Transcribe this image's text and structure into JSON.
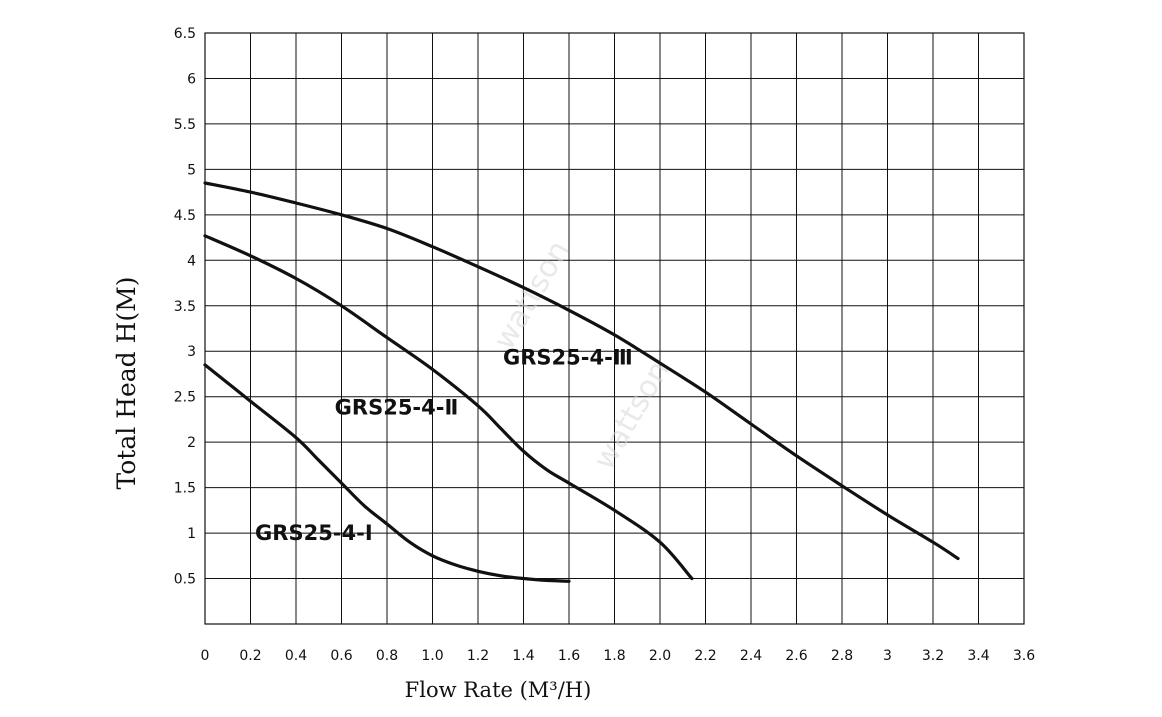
{
  "chart_data": {
    "type": "line",
    "title": "",
    "xlabel": "Flow Rate (M³/H)",
    "ylabel": "Total Head H(M)",
    "xlim": [
      0,
      3.6
    ],
    "ylim": [
      0,
      6.5
    ],
    "x_ticks": [
      "0",
      "0.2",
      "0.4",
      "0.6",
      "0.8",
      "1.0",
      "1.2",
      "1.4",
      "1.6",
      "1.8",
      "2.0",
      "2.2",
      "2.4",
      "2.6",
      "2.8",
      "3",
      "3.2",
      "3.4",
      "3.6"
    ],
    "y_ticks": [
      "0.5",
      "1",
      "1.5",
      "2",
      "2.5",
      "3",
      "3.5",
      "4",
      "4.5",
      "5",
      "5.5",
      "6",
      "6.5"
    ],
    "grid": true,
    "series": [
      {
        "name": "GRS25-4-Ⅰ",
        "x": [
          0,
          0.2,
          0.4,
          0.5,
          0.6,
          0.7,
          0.8,
          0.9,
          1.0,
          1.1,
          1.2,
          1.3,
          1.4,
          1.5,
          1.6
        ],
        "y": [
          2.85,
          2.45,
          2.05,
          1.8,
          1.55,
          1.3,
          1.1,
          0.9,
          0.75,
          0.65,
          0.58,
          0.53,
          0.5,
          0.48,
          0.47
        ]
      },
      {
        "name": "GRS25-4-Ⅱ",
        "x": [
          0,
          0.2,
          0.4,
          0.6,
          0.8,
          1.0,
          1.2,
          1.3,
          1.4,
          1.5,
          1.6,
          1.8,
          2.0,
          2.14
        ],
        "y": [
          4.27,
          4.05,
          3.8,
          3.5,
          3.15,
          2.8,
          2.4,
          2.15,
          1.9,
          1.7,
          1.55,
          1.25,
          0.9,
          0.5
        ]
      },
      {
        "name": "GRS25-4-Ⅲ",
        "x": [
          0,
          0.2,
          0.4,
          0.6,
          0.8,
          1.0,
          1.2,
          1.4,
          1.6,
          1.8,
          2.0,
          2.2,
          2.4,
          2.6,
          2.8,
          3.0,
          3.2,
          3.31
        ],
        "y": [
          4.85,
          4.75,
          4.63,
          4.5,
          4.35,
          4.15,
          3.93,
          3.7,
          3.45,
          3.18,
          2.87,
          2.55,
          2.2,
          1.85,
          1.52,
          1.2,
          0.9,
          0.72
        ]
      }
    ],
    "annotations": [
      {
        "text": "GRS25-4-Ⅰ",
        "x": 0.22,
        "y": 1.0
      },
      {
        "text": "GRS25-4-Ⅱ",
        "x": 0.57,
        "y": 2.38
      },
      {
        "text": "GRS25-4-Ⅲ",
        "x": 1.31,
        "y": 2.93
      }
    ]
  },
  "watermark": {
    "text": "wattson"
  }
}
